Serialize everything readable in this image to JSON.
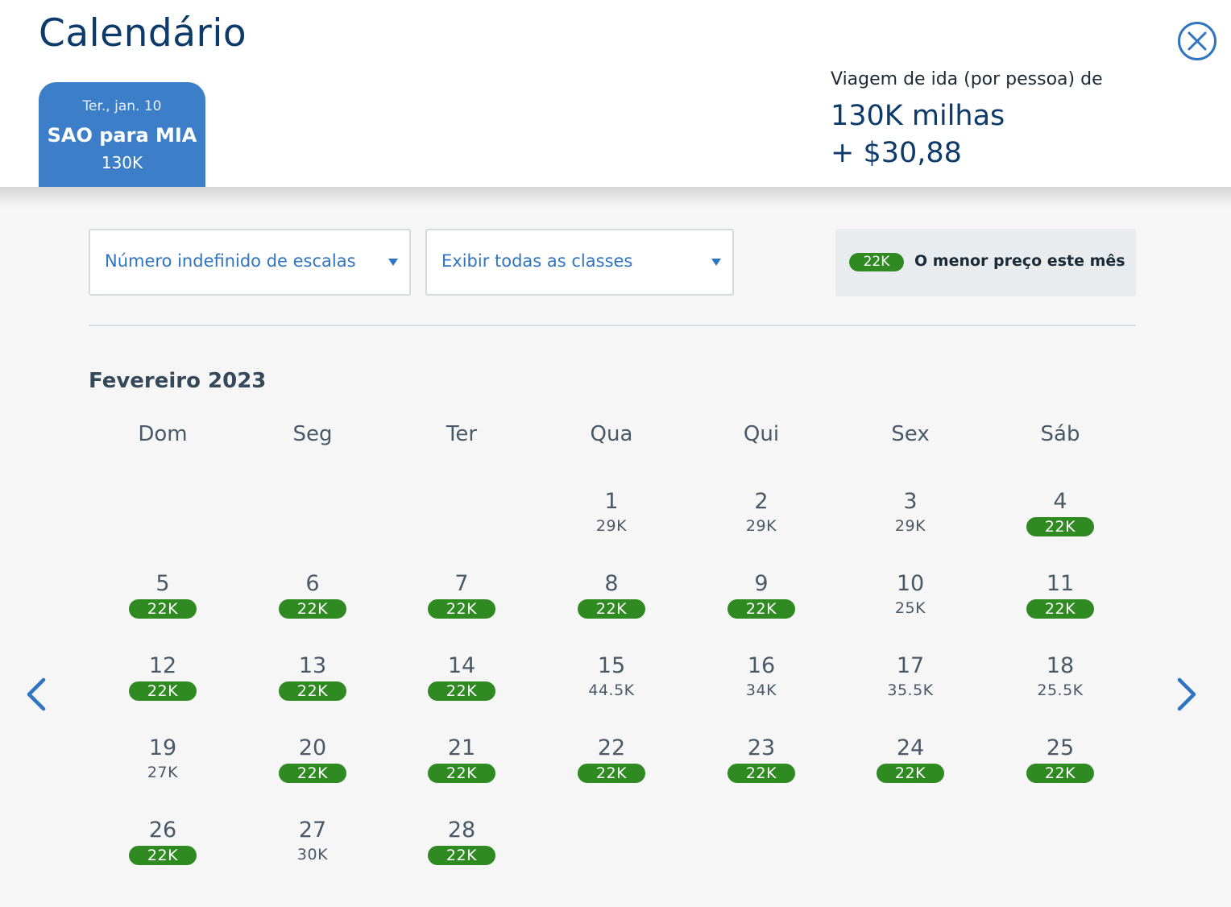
{
  "header": {
    "title": "Calendário",
    "close_icon": "close-circle-icon"
  },
  "trip_tab": {
    "date": "Ter., jan. 10",
    "route": "SAO para MIA",
    "price": "130K"
  },
  "price_summary": {
    "label": "Viagem de ida (por pessoa) de",
    "miles": "130K milhas",
    "cash": "+ $30,88"
  },
  "filters": {
    "stops": "Número indefinido de escalas",
    "classes": "Exibir todas as classes"
  },
  "legend": {
    "badge": "22K",
    "text": "O menor preço este mês"
  },
  "calendar": {
    "month": "Fevereiro 2023",
    "weekdays": [
      "Dom",
      "Seg",
      "Ter",
      "Qua",
      "Qui",
      "Sex",
      "Sáb"
    ],
    "first_weekday_index": 3,
    "days": [
      {
        "day": "1",
        "price": "29K",
        "lowest": false
      },
      {
        "day": "2",
        "price": "29K",
        "lowest": false
      },
      {
        "day": "3",
        "price": "29K",
        "lowest": false
      },
      {
        "day": "4",
        "price": "22K",
        "lowest": true
      },
      {
        "day": "5",
        "price": "22K",
        "lowest": true
      },
      {
        "day": "6",
        "price": "22K",
        "lowest": true
      },
      {
        "day": "7",
        "price": "22K",
        "lowest": true
      },
      {
        "day": "8",
        "price": "22K",
        "lowest": true
      },
      {
        "day": "9",
        "price": "22K",
        "lowest": true
      },
      {
        "day": "10",
        "price": "25K",
        "lowest": false
      },
      {
        "day": "11",
        "price": "22K",
        "lowest": true
      },
      {
        "day": "12",
        "price": "22K",
        "lowest": true
      },
      {
        "day": "13",
        "price": "22K",
        "lowest": true
      },
      {
        "day": "14",
        "price": "22K",
        "lowest": true
      },
      {
        "day": "15",
        "price": "44.5K",
        "lowest": false
      },
      {
        "day": "16",
        "price": "34K",
        "lowest": false
      },
      {
        "day": "17",
        "price": "35.5K",
        "lowest": false
      },
      {
        "day": "18",
        "price": "25.5K",
        "lowest": false
      },
      {
        "day": "19",
        "price": "27K",
        "lowest": false
      },
      {
        "day": "20",
        "price": "22K",
        "lowest": true
      },
      {
        "day": "21",
        "price": "22K",
        "lowest": true
      },
      {
        "day": "22",
        "price": "22K",
        "lowest": true
      },
      {
        "day": "23",
        "price": "22K",
        "lowest": true
      },
      {
        "day": "24",
        "price": "22K",
        "lowest": true
      },
      {
        "day": "25",
        "price": "22K",
        "lowest": true
      },
      {
        "day": "26",
        "price": "22K",
        "lowest": true
      },
      {
        "day": "27",
        "price": "30K",
        "lowest": false
      },
      {
        "day": "28",
        "price": "22K",
        "lowest": true
      }
    ]
  },
  "navigation": {
    "prev_icon": "chevron-left-icon",
    "next_icon": "chevron-right-icon"
  },
  "colors": {
    "brand_blue": "#3c7ec8",
    "title_navy": "#0b3a6b",
    "lowest_price_green": "#2f8a22",
    "link_blue": "#2f74c0"
  }
}
